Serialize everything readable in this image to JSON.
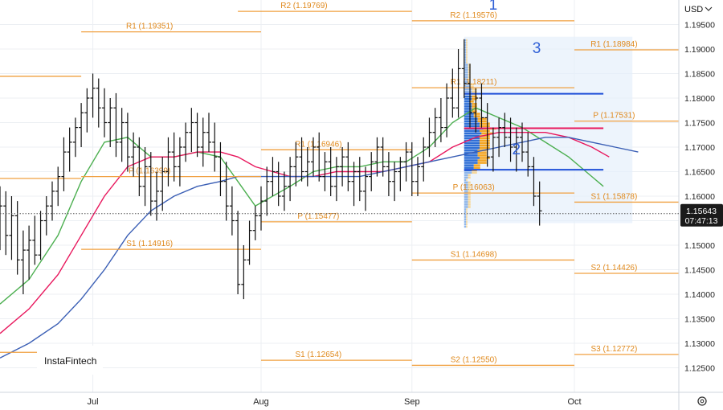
{
  "chart_data": {
    "type": "ohlc-bar",
    "currency": "USD",
    "yticks": [
      1.195,
      1.19,
      1.185,
      1.18,
      1.175,
      1.17,
      1.165,
      1.16,
      1.155,
      1.15,
      1.145,
      1.14,
      1.135,
      1.13,
      1.125
    ],
    "ytick_labels": [
      "1.19500",
      "1.19000",
      "1.18500",
      "1.18000",
      "1.17500",
      "1.17000",
      "1.16500",
      "1.16000",
      "1.15500",
      "1.15000",
      "1.14500",
      "1.14000",
      "1.13500",
      "1.13000",
      "1.12500"
    ],
    "ylim": [
      1.12,
      1.2
    ],
    "xlim": [
      0,
      117
    ],
    "months": [
      {
        "label": "Jul",
        "x": 16
      },
      {
        "label": "Aug",
        "x": 45
      },
      {
        "label": "Sep",
        "x": 71
      },
      {
        "label": "Oct",
        "x": 99
      }
    ],
    "current_price": {
      "value": 1.15643,
      "label": "1.15643",
      "countdown": "07:47:13"
    },
    "bars": [
      [
        0,
        1.155,
        1.162,
        1.149,
        1.158
      ],
      [
        1,
        1.158,
        1.161,
        1.148,
        1.152
      ],
      [
        2,
        1.152,
        1.16,
        1.147,
        1.156
      ],
      [
        3,
        1.156,
        1.159,
        1.144,
        1.147
      ],
      [
        4,
        1.147,
        1.153,
        1.14,
        1.149
      ],
      [
        5,
        1.149,
        1.154,
        1.143,
        1.151
      ],
      [
        6,
        1.151,
        1.156,
        1.146,
        1.148
      ],
      [
        7,
        1.148,
        1.157,
        1.147,
        1.155
      ],
      [
        8,
        1.155,
        1.16,
        1.152,
        1.158
      ],
      [
        9,
        1.158,
        1.163,
        1.155,
        1.161
      ],
      [
        10,
        1.161,
        1.166,
        1.158,
        1.164
      ],
      [
        11,
        1.164,
        1.172,
        1.161,
        1.169
      ],
      [
        12,
        1.169,
        1.174,
        1.165,
        1.171
      ],
      [
        13,
        1.171,
        1.176,
        1.168,
        1.174
      ],
      [
        14,
        1.174,
        1.179,
        1.17,
        1.177
      ],
      [
        15,
        1.177,
        1.182,
        1.173,
        1.18
      ],
      [
        16,
        1.18,
        1.185,
        1.176,
        1.182
      ],
      [
        17,
        1.182,
        1.184,
        1.174,
        1.178
      ],
      [
        18,
        1.178,
        1.182,
        1.172,
        1.175
      ],
      [
        19,
        1.175,
        1.18,
        1.17,
        1.178
      ],
      [
        20,
        1.178,
        1.181,
        1.168,
        1.171
      ],
      [
        21,
        1.171,
        1.178,
        1.167,
        1.175
      ],
      [
        22,
        1.175,
        1.177,
        1.165,
        1.168
      ],
      [
        23,
        1.168,
        1.173,
        1.164,
        1.17
      ],
      [
        24,
        1.17,
        1.172,
        1.16,
        1.162
      ],
      [
        25,
        1.162,
        1.17,
        1.158,
        1.166
      ],
      [
        26,
        1.166,
        1.169,
        1.156,
        1.159
      ],
      [
        27,
        1.159,
        1.165,
        1.155,
        1.161
      ],
      [
        28,
        1.161,
        1.168,
        1.157,
        1.165
      ],
      [
        29,
        1.165,
        1.172,
        1.162,
        1.169
      ],
      [
        30,
        1.169,
        1.173,
        1.163,
        1.166
      ],
      [
        31,
        1.166,
        1.172,
        1.162,
        1.17
      ],
      [
        32,
        1.17,
        1.175,
        1.167,
        1.173
      ],
      [
        33,
        1.173,
        1.178,
        1.169,
        1.175
      ],
      [
        34,
        1.175,
        1.177,
        1.168,
        1.17
      ],
      [
        35,
        1.17,
        1.176,
        1.166,
        1.173
      ],
      [
        36,
        1.173,
        1.177,
        1.169,
        1.171
      ],
      [
        37,
        1.171,
        1.175,
        1.165,
        1.168
      ],
      [
        38,
        1.168,
        1.171,
        1.16,
        1.163
      ],
      [
        39,
        1.163,
        1.167,
        1.155,
        1.158
      ],
      [
        40,
        1.158,
        1.162,
        1.152,
        1.155
      ],
      [
        41,
        1.155,
        1.157,
        1.14,
        1.142
      ],
      [
        42,
        1.142,
        1.15,
        1.139,
        1.147
      ],
      [
        43,
        1.147,
        1.155,
        1.146,
        1.153
      ],
      [
        44,
        1.153,
        1.158,
        1.151,
        1.156
      ],
      [
        45,
        1.156,
        1.162,
        1.153,
        1.159
      ],
      [
        46,
        1.159,
        1.166,
        1.156,
        1.163
      ],
      [
        47,
        1.163,
        1.168,
        1.16,
        1.165
      ],
      [
        48,
        1.165,
        1.167,
        1.158,
        1.16
      ],
      [
        49,
        1.16,
        1.165,
        1.157,
        1.162
      ],
      [
        50,
        1.162,
        1.168,
        1.159,
        1.166
      ],
      [
        51,
        1.166,
        1.171,
        1.162,
        1.168
      ],
      [
        52,
        1.168,
        1.172,
        1.163,
        1.165
      ],
      [
        53,
        1.165,
        1.17,
        1.162,
        1.167
      ],
      [
        54,
        1.167,
        1.172,
        1.164,
        1.17
      ],
      [
        55,
        1.17,
        1.173,
        1.163,
        1.164
      ],
      [
        56,
        1.164,
        1.169,
        1.161,
        1.167
      ],
      [
        57,
        1.167,
        1.17,
        1.16,
        1.162
      ],
      [
        58,
        1.162,
        1.168,
        1.159,
        1.166
      ],
      [
        59,
        1.166,
        1.17,
        1.162,
        1.168
      ],
      [
        60,
        1.168,
        1.171,
        1.161,
        1.163
      ],
      [
        61,
        1.163,
        1.167,
        1.158,
        1.165
      ],
      [
        62,
        1.165,
        1.168,
        1.159,
        1.161
      ],
      [
        63,
        1.161,
        1.166,
        1.157,
        1.164
      ],
      [
        64,
        1.164,
        1.169,
        1.161,
        1.167
      ],
      [
        65,
        1.167,
        1.172,
        1.164,
        1.17
      ],
      [
        66,
        1.17,
        1.172,
        1.164,
        1.166
      ],
      [
        67,
        1.166,
        1.169,
        1.16,
        1.163
      ],
      [
        68,
        1.163,
        1.167,
        1.159,
        1.165
      ],
      [
        69,
        1.165,
        1.168,
        1.161,
        1.167
      ],
      [
        70,
        1.167,
        1.171,
        1.163,
        1.169
      ],
      [
        71,
        1.169,
        1.171,
        1.16,
        1.163
      ],
      [
        72,
        1.163,
        1.168,
        1.16,
        1.166
      ],
      [
        73,
        1.166,
        1.172,
        1.163,
        1.17
      ],
      [
        74,
        1.17,
        1.176,
        1.168,
        1.173
      ],
      [
        75,
        1.173,
        1.178,
        1.17,
        1.176
      ],
      [
        76,
        1.176,
        1.18,
        1.171,
        1.174
      ],
      [
        77,
        1.174,
        1.183,
        1.172,
        1.18
      ],
      [
        78,
        1.18,
        1.186,
        1.176,
        1.178
      ],
      [
        79,
        1.178,
        1.19,
        1.176,
        1.186
      ],
      [
        80,
        1.186,
        1.192,
        1.18,
        1.183
      ],
      [
        81,
        1.183,
        1.187,
        1.174,
        1.177
      ],
      [
        82,
        1.177,
        1.182,
        1.173,
        1.18
      ],
      [
        83,
        1.18,
        1.183,
        1.174,
        1.176
      ],
      [
        84,
        1.176,
        1.179,
        1.166,
        1.168
      ],
      [
        85,
        1.168,
        1.174,
        1.165,
        1.172
      ],
      [
        86,
        1.172,
        1.176,
        1.168,
        1.174
      ],
      [
        87,
        1.174,
        1.177,
        1.17,
        1.172
      ],
      [
        88,
        1.172,
        1.176,
        1.167,
        1.17
      ],
      [
        89,
        1.17,
        1.174,
        1.165,
        1.172
      ],
      [
        90,
        1.172,
        1.175,
        1.167,
        1.169
      ],
      [
        91,
        1.169,
        1.173,
        1.164,
        1.166
      ],
      [
        92,
        1.166,
        1.168,
        1.158,
        1.16
      ],
      [
        93,
        1.16,
        1.163,
        1.154,
        1.157
      ]
    ],
    "moving_averages": [
      {
        "color": "#4caf50",
        "values": [
          [
            0,
            1.138
          ],
          [
            5,
            1.143
          ],
          [
            10,
            1.152
          ],
          [
            14,
            1.163
          ],
          [
            18,
            1.171
          ],
          [
            22,
            1.172
          ],
          [
            26,
            1.168
          ],
          [
            30,
            1.168
          ],
          [
            34,
            1.169
          ],
          [
            38,
            1.168
          ],
          [
            41,
            1.163
          ],
          [
            44,
            1.158
          ],
          [
            47,
            1.16
          ],
          [
            50,
            1.162
          ],
          [
            54,
            1.165
          ],
          [
            58,
            1.166
          ],
          [
            62,
            1.166
          ],
          [
            66,
            1.167
          ],
          [
            70,
            1.167
          ],
          [
            74,
            1.17
          ],
          [
            78,
            1.175
          ],
          [
            82,
            1.178
          ],
          [
            86,
            1.176
          ],
          [
            90,
            1.174
          ],
          [
            94,
            1.171
          ],
          [
            98,
            1.168
          ],
          [
            102,
            1.164
          ],
          [
            104,
            1.162
          ]
        ]
      },
      {
        "color": "#e8175d",
        "values": [
          [
            0,
            1.132
          ],
          [
            5,
            1.137
          ],
          [
            10,
            1.144
          ],
          [
            14,
            1.152
          ],
          [
            18,
            1.16
          ],
          [
            22,
            1.166
          ],
          [
            26,
            1.168
          ],
          [
            30,
            1.168
          ],
          [
            34,
            1.169
          ],
          [
            38,
            1.169
          ],
          [
            41,
            1.168
          ],
          [
            44,
            1.166
          ],
          [
            47,
            1.165
          ],
          [
            50,
            1.164
          ],
          [
            54,
            1.164
          ],
          [
            58,
            1.165
          ],
          [
            62,
            1.165
          ],
          [
            66,
            1.165
          ],
          [
            70,
            1.166
          ],
          [
            74,
            1.167
          ],
          [
            78,
            1.17
          ],
          [
            82,
            1.172
          ],
          [
            86,
            1.173
          ],
          [
            90,
            1.173
          ],
          [
            94,
            1.173
          ],
          [
            98,
            1.172
          ],
          [
            102,
            1.17
          ],
          [
            105,
            1.168
          ]
        ]
      },
      {
        "color": "#3b5fb5",
        "values": [
          [
            0,
            1.127
          ],
          [
            5,
            1.13
          ],
          [
            10,
            1.134
          ],
          [
            14,
            1.139
          ],
          [
            18,
            1.145
          ],
          [
            22,
            1.152
          ],
          [
            26,
            1.157
          ],
          [
            30,
            1.16
          ],
          [
            34,
            1.162
          ],
          [
            38,
            1.163
          ],
          [
            41,
            1.164
          ],
          [
            44,
            1.164
          ],
          [
            47,
            1.164
          ],
          [
            50,
            1.164
          ],
          [
            54,
            1.164
          ],
          [
            58,
            1.164
          ],
          [
            62,
            1.164
          ],
          [
            66,
            1.165
          ],
          [
            70,
            1.166
          ],
          [
            74,
            1.167
          ],
          [
            78,
            1.168
          ],
          [
            82,
            1.169
          ],
          [
            86,
            1.17
          ],
          [
            90,
            1.171
          ],
          [
            94,
            1.172
          ],
          [
            98,
            1.172
          ],
          [
            102,
            1.171
          ],
          [
            106,
            1.17
          ],
          [
            110,
            1.169
          ]
        ]
      }
    ],
    "pivot_levels": [
      {
        "label": "R2 (1.19769)",
        "value": 1.19769,
        "x1": 41,
        "x2": 71
      },
      {
        "label": "R1 (1.19351)",
        "value": 1.19351,
        "x1": 14,
        "x2": 45
      },
      {
        "label": "R2 (1.19576)",
        "value": 1.19576,
        "x1": 71,
        "x2": 99
      },
      {
        "label": "R1 (1.18211)",
        "value": 1.18211,
        "x1": 71,
        "x2": 99
      },
      {
        "label": "R1 (1.18984)",
        "value": 1.18984,
        "x1": 99,
        "x2": 117
      },
      {
        "label": "R1 (1.16946)",
        "value": 1.16946,
        "x1": 45,
        "x2": 71
      },
      {
        "label": "P (1.16399)",
        "value": 1.16399,
        "x1": 14,
        "x2": 45
      },
      {
        "label": "P (1.16063)",
        "value": 1.16063,
        "x1": 71,
        "x2": 99
      },
      {
        "label": "P (1.17531)",
        "value": 1.17531,
        "x1": 99,
        "x2": 117
      },
      {
        "label": "S1 (1.15878)",
        "value": 1.15878,
        "x1": 99,
        "x2": 117
      },
      {
        "label": "P (1.15477)",
        "value": 1.15477,
        "x1": 45,
        "x2": 71
      },
      {
        "label": "S1 (1.14916)",
        "value": 1.14916,
        "x1": 14,
        "x2": 45
      },
      {
        "label": "S1 (1.14698)",
        "value": 1.14698,
        "x1": 71,
        "x2": 99
      },
      {
        "label": "S2 (1.14426)",
        "value": 1.14426,
        "x1": 99,
        "x2": 117
      },
      {
        "label": "S3 (1.12772)",
        "value": 1.12772,
        "x1": 99,
        "x2": 117
      },
      {
        "label": "S1 (1.12654)",
        "value": 1.12654,
        "x1": 45,
        "x2": 71
      },
      {
        "label": "S2 (1.12550)",
        "value": 1.1255,
        "x1": 71,
        "x2": 99
      }
    ],
    "extra_orange_lines": [
      {
        "value": 1.18444,
        "x1": 0,
        "x2": 14
      },
      {
        "value": 1.16361,
        "x1": 0,
        "x2": 14
      },
      {
        "value": 1.12816,
        "x1": 0,
        "x2": 14
      }
    ],
    "annotations": [
      {
        "label": "1",
        "x": 85,
        "y": 1.198
      },
      {
        "label": "2",
        "x": 89,
        "y": 1.1685
      },
      {
        "label": "3",
        "x": 92.5,
        "y": 1.1892
      }
    ],
    "blue_levels": [
      {
        "value": 1.18088,
        "x1": 80,
        "x2": 104
      },
      {
        "value": 1.16538,
        "x1": 80,
        "x2": 104
      }
    ],
    "red_level": {
      "value": 1.17386,
      "x1": 80,
      "x2": 104
    },
    "watermark": "InstaFintech"
  }
}
